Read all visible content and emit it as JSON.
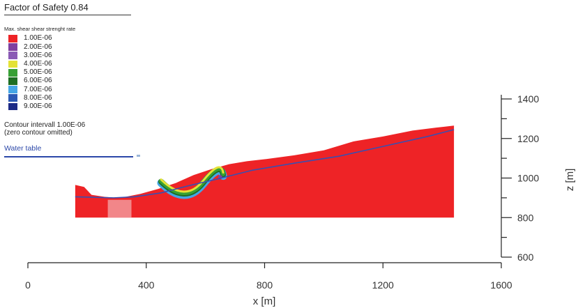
{
  "chart_data": {
    "type": "heatmap",
    "title": "Factor of Safety 0.84",
    "legend_title": "Max. shear shear strenght rate",
    "legend": [
      {
        "label": "1.00E-06",
        "color": "#ee2326"
      },
      {
        "label": "2.00E-06",
        "color": "#7f3fa0"
      },
      {
        "label": "3.00E-06",
        "color": "#8a5ab5"
      },
      {
        "label": "4.00E-06",
        "color": "#e4e236"
      },
      {
        "label": "5.00E-06",
        "color": "#37a035"
      },
      {
        "label": "6.00E-06",
        "color": "#1d6e23"
      },
      {
        "label": "7.00E-06",
        "color": "#45a6e6"
      },
      {
        "label": "8.00E-06",
        "color": "#2b58b4"
      },
      {
        "label": "9.00E-06",
        "color": "#1c2a86"
      }
    ],
    "contour_note_1": "Contour intervall 1.00E-06",
    "contour_note_2": "(zero contour omitted)",
    "water_table_label": "Water table",
    "xlabel": "x [m]",
    "ylabel": "z [m]",
    "x_ticks": [
      "0",
      "400",
      "800",
      "1200",
      "1600"
    ],
    "x_tick_values": [
      0,
      400,
      800,
      1200,
      1600
    ],
    "xlim": [
      0,
      1600
    ],
    "z_ticks": [
      "600",
      "800",
      "1000",
      "1200",
      "1400"
    ],
    "z_tick_values": [
      600,
      800,
      1000,
      1200,
      1400
    ],
    "zlim": [
      600,
      1400
    ],
    "grid": false,
    "slope_surface": {
      "x": [
        160,
        190,
        215,
        260,
        300,
        330,
        380,
        440,
        500,
        560,
        620,
        680,
        740,
        800,
        900,
        1000,
        1100,
        1200,
        1300,
        1380,
        1440
      ],
      "z": [
        965,
        955,
        915,
        905,
        900,
        905,
        920,
        945,
        975,
        1015,
        1045,
        1070,
        1085,
        1095,
        1115,
        1140,
        1185,
        1210,
        1240,
        1255,
        1265
      ]
    },
    "slope_base_z": 800,
    "water_table": {
      "x": [
        160,
        290,
        360,
        450,
        540,
        640,
        760,
        900,
        1050,
        1200,
        1350,
        1440
      ],
      "z": [
        905,
        900,
        905,
        925,
        960,
        995,
        1040,
        1075,
        1110,
        1160,
        1210,
        1245
      ]
    },
    "failure_zone": {
      "x_range": [
        450,
        660
      ],
      "z_range": [
        905,
        1010
      ],
      "colors": [
        "#37a035",
        "#1d6e23",
        "#e4e236",
        "#7f3fa0",
        "#45a6e6"
      ]
    }
  }
}
